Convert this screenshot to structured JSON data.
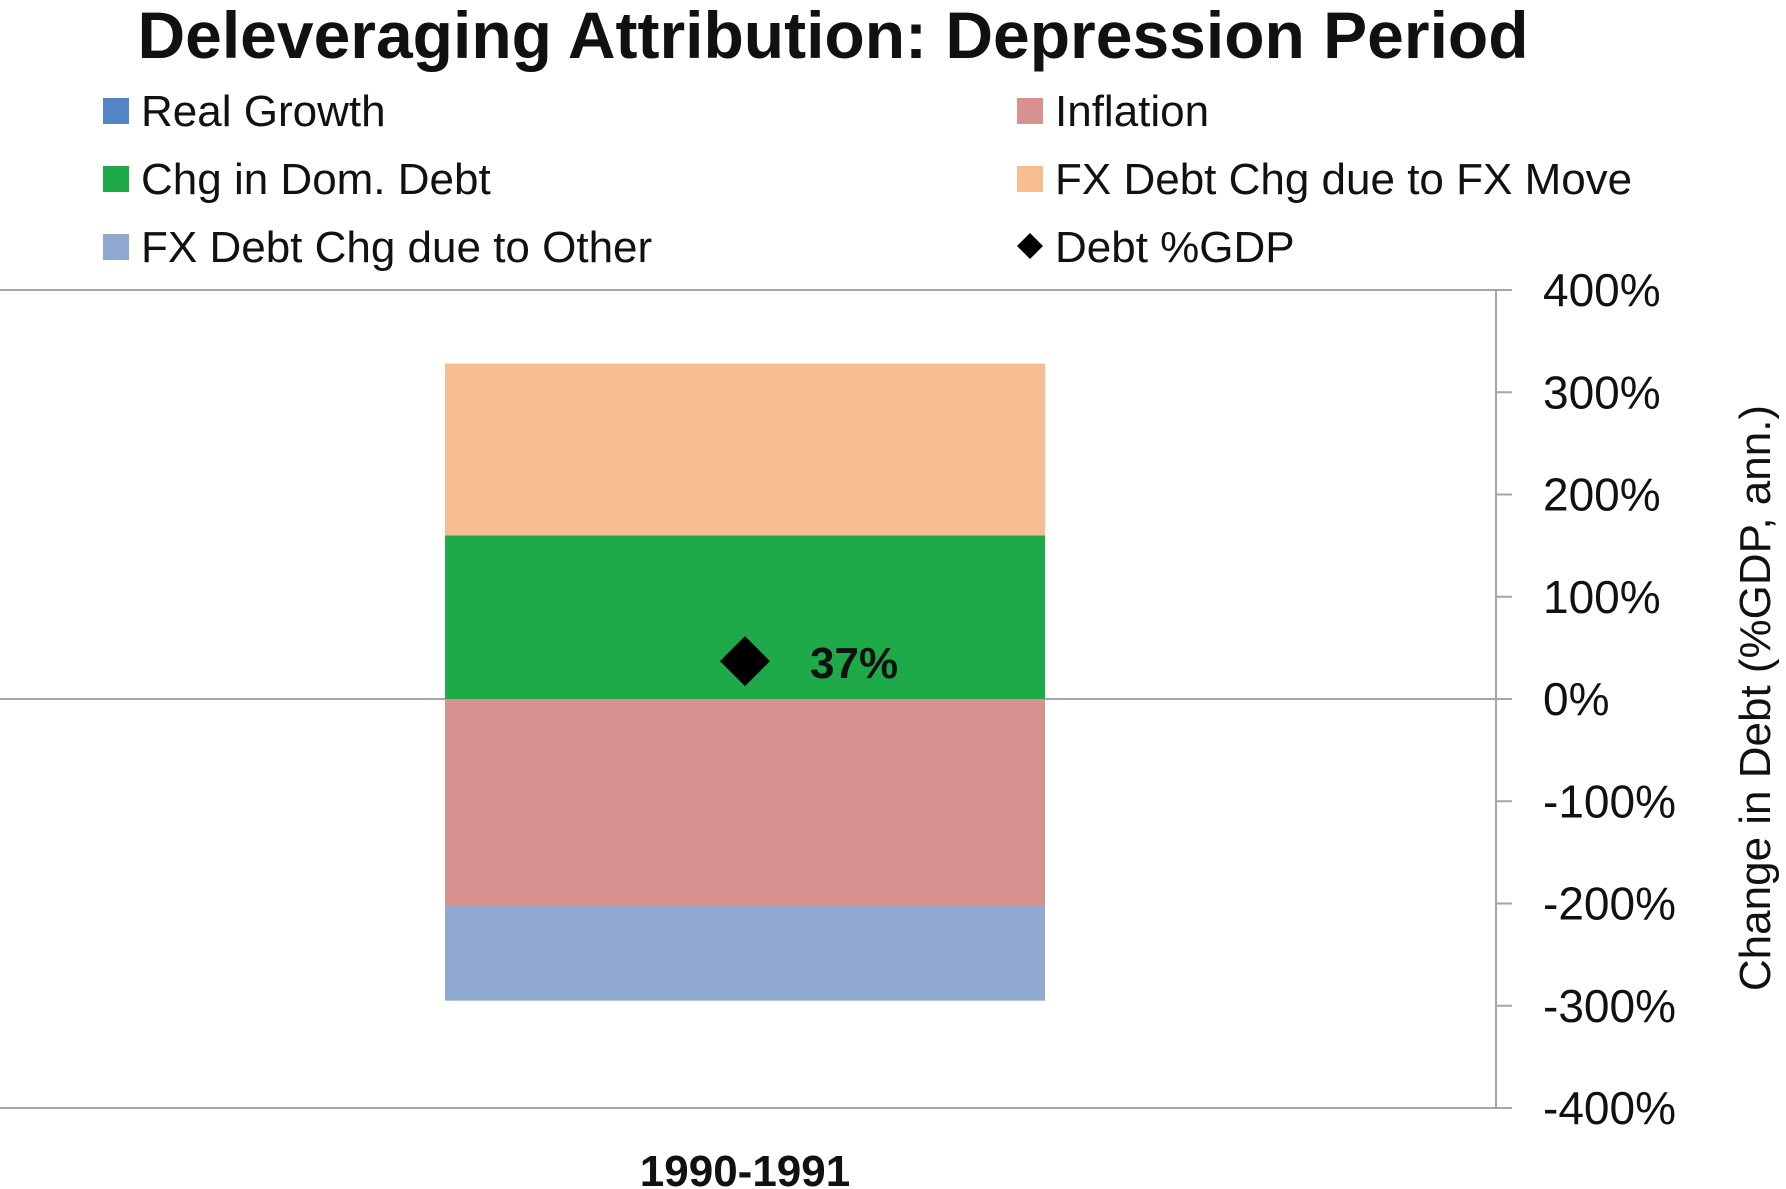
{
  "chart_data": {
    "type": "bar",
    "stacked": true,
    "title": "Deleveraging Attribution: Depression Period",
    "xlabel": "",
    "ylabel": "Change in Debt (%GDP, ann.)",
    "ylim": [
      -400,
      400
    ],
    "y_axis_position": "right",
    "y_ticks": [
      "400%",
      "300%",
      "200%",
      "100%",
      "0%",
      "-100%",
      "-200%",
      "-300%",
      "-400%"
    ],
    "y_tick_values": [
      400,
      300,
      200,
      100,
      0,
      -100,
      -200,
      -300,
      -400
    ],
    "grid": false,
    "legend_position": "top",
    "categories": [
      "1990-1991"
    ],
    "series": [
      {
        "name": "Real Growth",
        "values": [
          0
        ],
        "color": "#5384c6",
        "marker": "square"
      },
      {
        "name": "Inflation",
        "values": [
          -202
        ],
        "color": "#d79290",
        "marker": "square"
      },
      {
        "name": "Chg in Dom. Debt",
        "values": [
          160
        ],
        "color": "#1faa4a",
        "marker": "square"
      },
      {
        "name": "FX Debt Chg due to FX Move",
        "values": [
          168
        ],
        "color": "#f5bd90",
        "marker": "square"
      },
      {
        "name": "FX Debt Chg due to Other",
        "values": [
          -93
        ],
        "color": "#8fa9d1",
        "marker": "square"
      },
      {
        "name": "Debt %GDP",
        "values": [
          37
        ],
        "color": "#000000",
        "marker": "diamond",
        "type": "point",
        "data_labels": [
          "37%"
        ]
      }
    ]
  }
}
